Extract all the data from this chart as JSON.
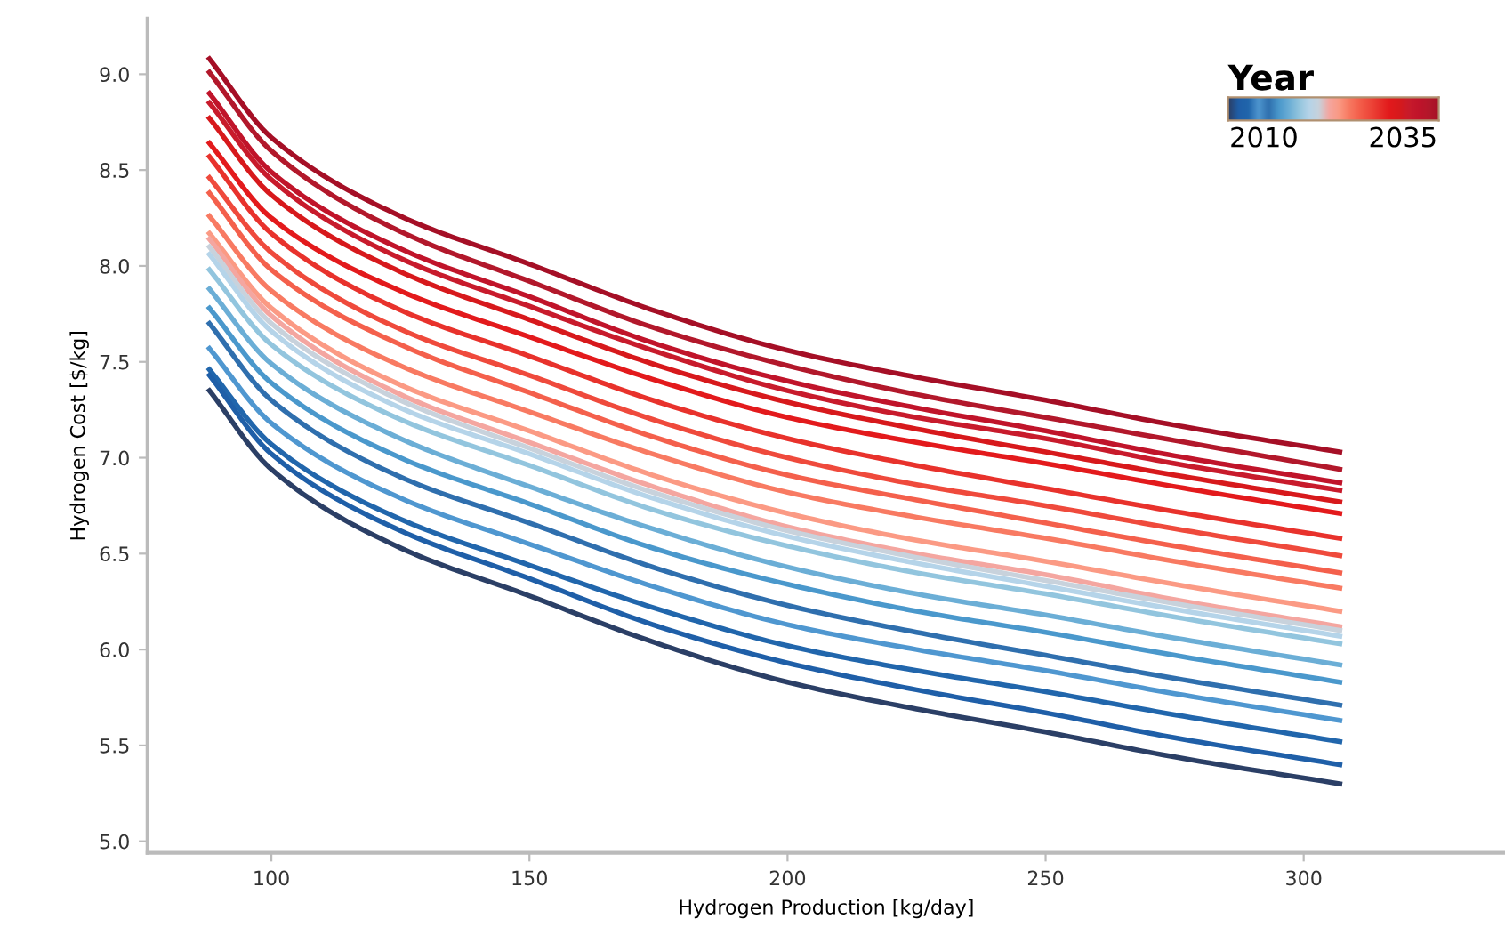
{
  "chart_data": {
    "type": "line",
    "xlabel": "Hydrogen Production [kg/day]",
    "ylabel": "Hydrogen Cost [$/kg]",
    "clabel": "Year",
    "annotations": [
      "2010",
      "2035"
    ],
    "x": [
      88,
      100,
      125,
      150,
      175,
      200,
      225,
      250,
      275,
      307
    ],
    "xlim": [
      76,
      339
    ],
    "xticks": [
      100,
      150,
      200,
      250,
      300
    ],
    "ylim": [
      4.94,
      9.29
    ],
    "yticks": [
      {
        "value": 5.0,
        "label": "5.0"
      },
      {
        "value": 5.5,
        "label": "5.5"
      },
      {
        "value": 6.0,
        "label": "6.0"
      },
      {
        "value": 6.5,
        "label": "6.5"
      },
      {
        "value": 7.0,
        "label": "7.0"
      },
      {
        "value": 7.5,
        "label": "7.5"
      },
      {
        "value": 8.0,
        "label": "8.0"
      },
      {
        "value": 8.5,
        "label": "8.5"
      },
      {
        "value": 9.0,
        "label": "9.0"
      }
    ],
    "grid": false,
    "series": [
      {
        "color": "#a50f26",
        "values": [
          9.08,
          8.67,
          8.26,
          8.01,
          7.76,
          7.56,
          7.42,
          7.3,
          7.17,
          7.03
        ]
      },
      {
        "color": "#b2182b",
        "values": [
          9.01,
          8.6,
          8.18,
          7.92,
          7.67,
          7.48,
          7.33,
          7.21,
          7.09,
          6.94
        ]
      },
      {
        "color": "#c0142a",
        "values": [
          8.9,
          8.49,
          8.09,
          7.84,
          7.59,
          7.4,
          7.26,
          7.14,
          7.01,
          6.87
        ]
      },
      {
        "color": "#c81b2c",
        "values": [
          8.85,
          8.45,
          8.04,
          7.79,
          7.55,
          7.35,
          7.21,
          7.1,
          6.97,
          6.83
        ]
      },
      {
        "color": "#d7191c",
        "values": [
          8.77,
          8.37,
          7.97,
          7.72,
          7.48,
          7.29,
          7.15,
          7.03,
          6.91,
          6.77
        ]
      },
      {
        "color": "#e31a1c",
        "values": [
          8.64,
          8.25,
          7.87,
          7.63,
          7.4,
          7.21,
          7.08,
          6.97,
          6.85,
          6.71
        ]
      },
      {
        "color": "#e8322c",
        "values": [
          8.57,
          8.17,
          7.77,
          7.53,
          7.29,
          7.1,
          6.96,
          6.84,
          6.72,
          6.58
        ]
      },
      {
        "color": "#ef4a3c",
        "values": [
          8.46,
          8.07,
          7.67,
          7.43,
          7.19,
          7.0,
          6.86,
          6.75,
          6.63,
          6.49
        ]
      },
      {
        "color": "#f4604c",
        "values": [
          8.38,
          7.98,
          7.59,
          7.34,
          7.1,
          6.91,
          6.78,
          6.66,
          6.54,
          6.4
        ]
      },
      {
        "color": "#f87a62",
        "values": [
          8.26,
          7.87,
          7.48,
          7.24,
          7.01,
          6.82,
          6.69,
          6.58,
          6.46,
          6.32
        ]
      },
      {
        "color": "#fb9a84",
        "values": [
          8.17,
          7.78,
          7.38,
          7.14,
          6.9,
          6.71,
          6.57,
          6.46,
          6.34,
          6.2
        ]
      },
      {
        "color": "#f4a6a0",
        "values": [
          8.14,
          7.74,
          7.33,
          7.08,
          6.84,
          6.64,
          6.5,
          6.39,
          6.26,
          6.12
        ]
      },
      {
        "color": "#c8d2dc",
        "values": [
          8.1,
          7.7,
          7.3,
          7.05,
          6.81,
          6.62,
          6.48,
          6.36,
          6.24,
          6.1
        ]
      },
      {
        "color": "#b5d4e9",
        "values": [
          8.06,
          7.66,
          7.26,
          7.02,
          6.78,
          6.59,
          6.45,
          6.33,
          6.21,
          6.07
        ]
      },
      {
        "color": "#92c5de",
        "values": [
          7.98,
          7.59,
          7.2,
          6.96,
          6.72,
          6.54,
          6.4,
          6.29,
          6.17,
          6.03
        ]
      },
      {
        "color": "#6baed6",
        "values": [
          7.88,
          7.49,
          7.1,
          6.85,
          6.62,
          6.43,
          6.29,
          6.18,
          6.06,
          5.92
        ]
      },
      {
        "color": "#4a98cc",
        "values": [
          7.78,
          7.39,
          7.0,
          6.76,
          6.52,
          6.34,
          6.2,
          6.09,
          5.97,
          5.83
        ]
      },
      {
        "color": "#2f6fae",
        "values": [
          7.7,
          7.3,
          6.9,
          6.66,
          6.42,
          6.23,
          6.09,
          5.97,
          5.85,
          5.71
        ]
      },
      {
        "color": "#4f97d0",
        "values": [
          7.57,
          7.18,
          6.79,
          6.55,
          6.32,
          6.13,
          6.0,
          5.89,
          5.77,
          5.63
        ]
      },
      {
        "color": "#2166ac",
        "values": [
          7.46,
          7.07,
          6.68,
          6.44,
          6.21,
          6.02,
          5.89,
          5.78,
          5.66,
          5.52
        ]
      },
      {
        "color": "#1f5fa8",
        "values": [
          7.43,
          7.02,
          6.62,
          6.37,
          6.12,
          5.93,
          5.79,
          5.67,
          5.54,
          5.4
        ]
      },
      {
        "color": "#2b3f66",
        "values": [
          7.35,
          6.94,
          6.53,
          6.28,
          6.03,
          5.83,
          5.69,
          5.57,
          5.44,
          5.3
        ]
      }
    ]
  }
}
